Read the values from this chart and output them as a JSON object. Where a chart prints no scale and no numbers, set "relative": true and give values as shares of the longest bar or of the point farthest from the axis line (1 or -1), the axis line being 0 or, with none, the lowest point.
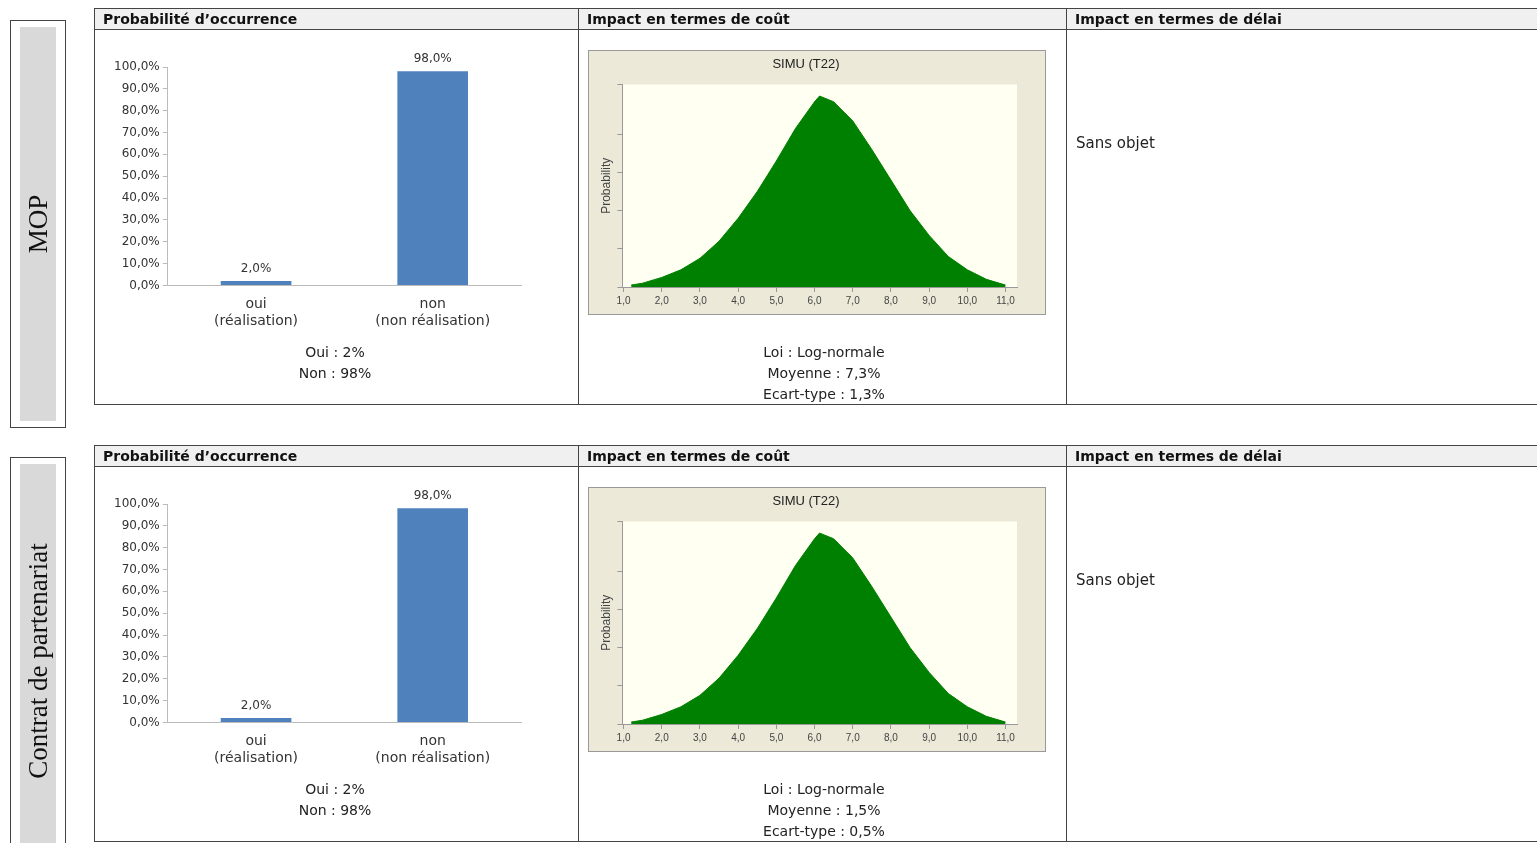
{
  "chart_data": [
    {
      "type": "other",
      "title": "MOP"
    },
    {
      "type": "bar",
      "title": "Probabilité d’occurrence",
      "categories": [
        "oui (réalisation)",
        "non (non réalisation)"
      ],
      "values": [
        2.0,
        98.0
      ],
      "color": "#4f81bd",
      "value_labels": [
        "2,0%",
        "98,0%"
      ],
      "ylim": [
        0,
        100
      ],
      "yticks": [
        {
          "value": 0,
          "label": "0,0%"
        },
        {
          "value": 10,
          "label": "10,0%"
        },
        {
          "value": 20,
          "label": "20,0%"
        },
        {
          "value": 30,
          "label": "30,0%"
        },
        {
          "value": 40,
          "label": "40,0%"
        },
        {
          "value": 50,
          "label": "50,0%"
        },
        {
          "value": 60,
          "label": "60,0%"
        },
        {
          "value": 70,
          "label": "70,0%"
        },
        {
          "value": 80,
          "label": "80,0%"
        },
        {
          "value": 90,
          "label": "90,0%"
        },
        {
          "value": 100,
          "label": "100,0%"
        }
      ],
      "annotations": [
        "Oui : 2%",
        "Non : 98%"
      ]
    },
    {
      "type": "area",
      "title": "Impact en termes de coût",
      "subtitle": "SIMU (T22)",
      "ylabel": "Probability",
      "relative": true,
      "color": "#008000",
      "x": [
        1.2,
        1.5,
        2,
        2.5,
        3,
        3.5,
        4,
        4.5,
        5,
        5.5,
        6,
        6.13,
        6.5,
        7,
        7.5,
        8,
        8.5,
        9,
        9.5,
        10,
        10.5,
        11
      ],
      "values": [
        0.01,
        0.02,
        0.05,
        0.09,
        0.15,
        0.24,
        0.36,
        0.5,
        0.66,
        0.83,
        0.97,
        1,
        0.97,
        0.87,
        0.72,
        0.56,
        0.4,
        0.27,
        0.16,
        0.09,
        0.04,
        0.01
      ],
      "xlim": [
        0.97,
        11.3
      ],
      "xticks": [
        {
          "value": 1,
          "label": "1,0"
        },
        {
          "value": 2,
          "label": "2,0"
        },
        {
          "value": 3,
          "label": "3,0"
        },
        {
          "value": 4,
          "label": "4,0"
        },
        {
          "value": 5,
          "label": "5,0"
        },
        {
          "value": 6,
          "label": "6,0"
        },
        {
          "value": 7,
          "label": "7,0"
        },
        {
          "value": 8,
          "label": "8,0"
        },
        {
          "value": 9,
          "label": "9,0"
        },
        {
          "value": 10,
          "label": "10,0"
        },
        {
          "value": 11,
          "label": "11,0"
        }
      ],
      "annotations": [
        "Loi : Log-normale",
        "Moyenne : 7,3%",
        "Ecart-type : 1,3%"
      ]
    },
    {
      "type": "other",
      "title": "Impact en termes de délai",
      "annotations": [
        "Sans objet"
      ]
    },
    {
      "type": "other",
      "title": "Contrat de partenariat"
    },
    {
      "type": "bar",
      "title": "Probabilité d’occurrence",
      "categories": [
        "oui (réalisation)",
        "non (non réalisation)"
      ],
      "values": [
        2.0,
        98.0
      ],
      "color": "#4f81bd",
      "value_labels": [
        "2,0%",
        "98,0%"
      ],
      "ylim": [
        0,
        100
      ],
      "yticks": [
        {
          "value": 0,
          "label": "0,0%"
        },
        {
          "value": 10,
          "label": "10,0%"
        },
        {
          "value": 20,
          "label": "20,0%"
        },
        {
          "value": 30,
          "label": "30,0%"
        },
        {
          "value": 40,
          "label": "40,0%"
        },
        {
          "value": 50,
          "label": "50,0%"
        },
        {
          "value": 60,
          "label": "60,0%"
        },
        {
          "value": 70,
          "label": "70,0%"
        },
        {
          "value": 80,
          "label": "80,0%"
        },
        {
          "value": 90,
          "label": "90,0%"
        },
        {
          "value": 100,
          "label": "100,0%"
        }
      ],
      "annotations": [
        "Oui : 2%",
        "Non : 98%"
      ]
    },
    {
      "type": "area",
      "title": "Impact en termes de coût",
      "subtitle": "SIMU (T22)",
      "ylabel": "Probability",
      "relative": true,
      "color": "#008000",
      "x": [
        1.2,
        1.5,
        2,
        2.5,
        3,
        3.5,
        4,
        4.5,
        5,
        5.5,
        6,
        6.13,
        6.5,
        7,
        7.5,
        8,
        8.5,
        9,
        9.5,
        10,
        10.5,
        11
      ],
      "values": [
        0.01,
        0.02,
        0.05,
        0.09,
        0.15,
        0.24,
        0.36,
        0.5,
        0.66,
        0.83,
        0.97,
        1,
        0.97,
        0.87,
        0.72,
        0.56,
        0.4,
        0.27,
        0.16,
        0.09,
        0.04,
        0.01
      ],
      "xlim": [
        0.97,
        11.3
      ],
      "xticks": [
        {
          "value": 1,
          "label": "1,0"
        },
        {
          "value": 2,
          "label": "2,0"
        },
        {
          "value": 3,
          "label": "3,0"
        },
        {
          "value": 4,
          "label": "4,0"
        },
        {
          "value": 5,
          "label": "5,0"
        },
        {
          "value": 6,
          "label": "6,0"
        },
        {
          "value": 7,
          "label": "7,0"
        },
        {
          "value": 8,
          "label": "8,0"
        },
        {
          "value": 9,
          "label": "9,0"
        },
        {
          "value": 10,
          "label": "10,0"
        },
        {
          "value": 11,
          "label": "11,0"
        }
      ],
      "annotations": [
        "Loi : Log-normale",
        "Moyenne : 1,5%",
        "Ecart-type : 0,5%"
      ]
    },
    {
      "type": "other",
      "title": "Impact en termes de délai",
      "annotations": [
        "Sans objet"
      ]
    }
  ]
}
